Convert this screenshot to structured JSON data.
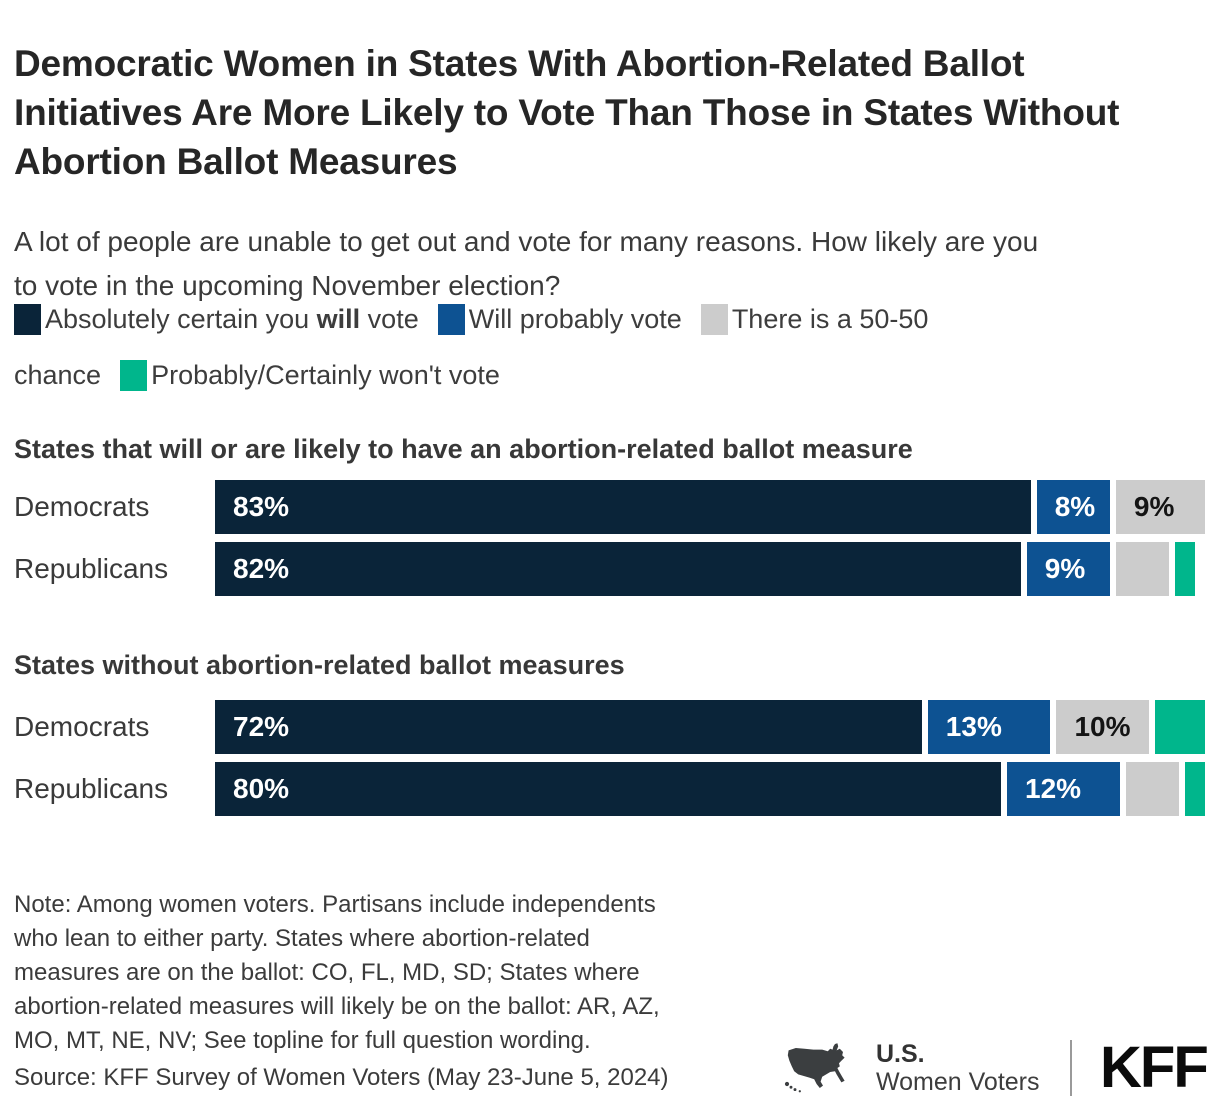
{
  "title": "Democratic Women in States With Abortion-Related Ballot Initiatives Are More Likely to Vote Than Those in States Without Abortion Ballot Measures",
  "subtitle": "A lot of people are unable to get out and vote for many reasons. How likely are you to vote in the upcoming November election?",
  "colors": {
    "certain": "#0a2439",
    "probably": "#0d5292",
    "chance": "#cccccc",
    "wont": "#00b68c"
  },
  "legend": {
    "certain": {
      "pre": "Absolutely certain you ",
      "bold": "will",
      "post": " vote"
    },
    "probably": {
      "label": "Will probably vote"
    },
    "chance": {
      "label": "There is a 50-50 chance",
      "line1": "There is a 50-50",
      "line2": "chance"
    },
    "wont": {
      "label": "Probably/Certainly won't vote"
    }
  },
  "chart_data": {
    "type": "bar",
    "variant": "horizontal-stacked",
    "unit": "percent",
    "xlim": [
      0,
      100
    ],
    "grid": false,
    "legend_position": "top",
    "series_keys": [
      "certain",
      "probably",
      "chance",
      "wont"
    ],
    "series_names": [
      "Absolutely certain you will vote",
      "Will probably vote",
      "There is a 50-50 chance",
      "Probably/Certainly won't vote"
    ],
    "groups": [
      {
        "heading": "States that will or are likely to have an abortion-related ballot measure",
        "rows": [
          {
            "label": "Democrats",
            "values": [
              83,
              8,
              9,
              0
            ],
            "value_labels": [
              "83%",
              "8%",
              "9%",
              ""
            ]
          },
          {
            "label": "Republicans",
            "values": [
              82,
              9,
              6,
              2
            ],
            "value_labels": [
              "82%",
              "9%",
              "",
              ""
            ]
          }
        ]
      },
      {
        "heading": "States without abortion-related ballot measures",
        "rows": [
          {
            "label": "Democrats",
            "values": [
              72,
              13,
              10,
              5
            ],
            "value_labels": [
              "72%",
              "13%",
              "10%",
              ""
            ]
          },
          {
            "label": "Republicans",
            "values": [
              80,
              12,
              6,
              2
            ],
            "value_labels": [
              "80%",
              "12%",
              "",
              ""
            ]
          }
        ]
      }
    ]
  },
  "note_lines": [
    "Note: Among women voters. Partisans include independents",
    "who lean to either party. States where abortion-related",
    "measures are on the ballot: CO, FL, MD, SD; States where",
    "abortion-related measures will likely be on the ballot: AR, AZ,",
    "MO, MT, NE, NV; See topline for full question wording."
  ],
  "source": "Source: KFF Survey of Women Voters (May 23-June 5, 2024)",
  "footer": {
    "brand_top": "U.S.",
    "brand_bottom": "Women Voters",
    "logo_text": "KFF",
    "map_icon": "us-map-icon"
  }
}
